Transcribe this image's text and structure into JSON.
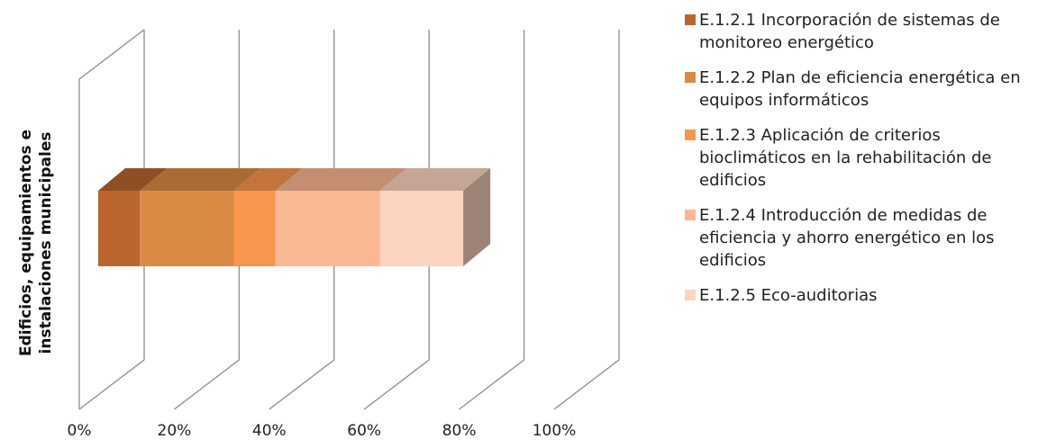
{
  "chart_data": {
    "type": "bar",
    "orientation": "horizontal",
    "stacking": "percent",
    "three_d": true,
    "categories": [
      "Edificios, equipamientos e instalaciones municipales"
    ],
    "xlim": [
      0,
      100
    ],
    "x_ticks": [
      "0%",
      "20%",
      "40%",
      "60%",
      "80%",
      "100%"
    ],
    "grid": true,
    "legend_position": "right",
    "series": [
      {
        "name": "E.1.2.1 Incorporación de sistemas de monitoreo energético",
        "values": [
          10
        ],
        "color": "#b9652c"
      },
      {
        "name": "E.1.2.2 Plan de eficiencia energética en equipos informáticos",
        "values": [
          22.5
        ],
        "color": "#d98a44"
      },
      {
        "name": "E.1.2.3 Aplicación de criterios bioclimáticos en la rehabilitación de edificios",
        "values": [
          10
        ],
        "color": "#f8964c"
      },
      {
        "name": "E.1.2.4 Introducción de medidas de eficiencia y ahorro energético en los edificios",
        "values": [
          25
        ],
        "color": "#f9b794"
      },
      {
        "name": "E.1.2.5 Eco-auditorias",
        "values": [
          20
        ],
        "color": "#fcd4bf"
      }
    ]
  }
}
